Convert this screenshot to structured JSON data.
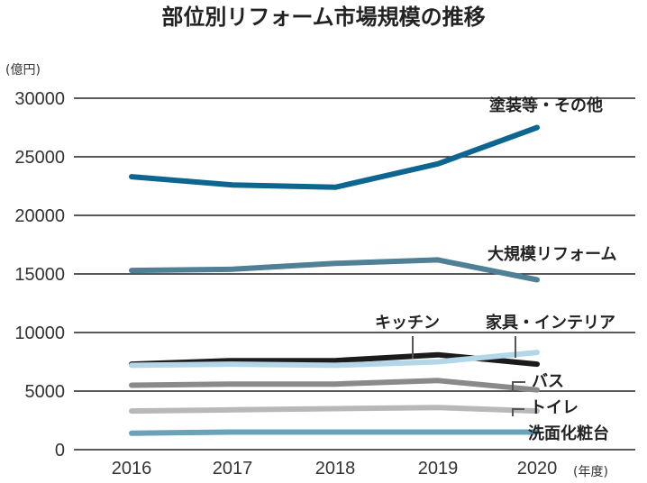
{
  "chart_data": {
    "type": "line",
    "title": "部位別リフォーム市場規模の推移",
    "ylabel": "(億円)",
    "xlabel": "(年度)",
    "ylim": [
      0,
      30000
    ],
    "yticks": [
      0,
      5000,
      10000,
      15000,
      20000,
      25000,
      30000
    ],
    "categories": [
      "2016",
      "2017",
      "2018",
      "2019",
      "2020"
    ],
    "grid": true,
    "series": [
      {
        "name": "塗装等・その他",
        "color": "#0d6690",
        "values": [
          23300,
          22600,
          22400,
          24400,
          27500
        ]
      },
      {
        "name": "大規模リフォーム",
        "color": "#4f8096",
        "values": [
          15300,
          15400,
          15900,
          16200,
          14500
        ]
      },
      {
        "name": "キッチン",
        "color": "#1b1b1b",
        "values": [
          7300,
          7600,
          7600,
          8100,
          7300
        ]
      },
      {
        "name": "家具・インテリア",
        "color": "#b3d6e8",
        "values": [
          7200,
          7300,
          7200,
          7500,
          8300
        ]
      },
      {
        "name": "バス",
        "color": "#8a8a8a",
        "values": [
          5500,
          5600,
          5600,
          5900,
          5100
        ]
      },
      {
        "name": "トイレ",
        "color": "#b8b8b8",
        "values": [
          3300,
          3400,
          3500,
          3600,
          3300
        ]
      },
      {
        "name": "洗面化粧台",
        "color": "#6aa2b8",
        "values": [
          1400,
          1500,
          1500,
          1500,
          1500
        ]
      }
    ]
  }
}
